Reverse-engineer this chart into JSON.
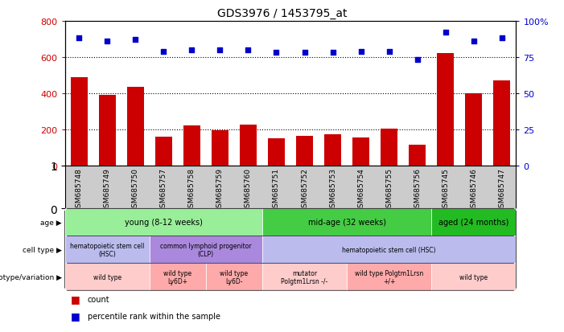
{
  "title": "GDS3976 / 1453795_at",
  "samples": [
    "GSM685748",
    "GSM685749",
    "GSM685750",
    "GSM685757",
    "GSM685758",
    "GSM685759",
    "GSM685760",
    "GSM685751",
    "GSM685752",
    "GSM685753",
    "GSM685754",
    "GSM685755",
    "GSM685756",
    "GSM685745",
    "GSM685746",
    "GSM685747"
  ],
  "counts": [
    490,
    390,
    435,
    160,
    220,
    195,
    225,
    150,
    165,
    170,
    155,
    205,
    115,
    620,
    400,
    470
  ],
  "percentiles": [
    88,
    86,
    87,
    79,
    80,
    80,
    80,
    78,
    78,
    78,
    79,
    79,
    73,
    92,
    86,
    88
  ],
  "bar_color": "#cc0000",
  "dot_color": "#0000cc",
  "ylim_left": [
    0,
    800
  ],
  "ylim_right": [
    0,
    100
  ],
  "yticks_left": [
    0,
    200,
    400,
    600,
    800
  ],
  "yticks_right": [
    0,
    25,
    50,
    75,
    100
  ],
  "grid_values": [
    200,
    400,
    600
  ],
  "age_groups": [
    {
      "label": "young (8-12 weeks)",
      "start": 0,
      "end": 6,
      "color": "#99ee99"
    },
    {
      "label": "mid-age (32 weeks)",
      "start": 7,
      "end": 12,
      "color": "#44cc44"
    },
    {
      "label": "aged (24 months)",
      "start": 13,
      "end": 15,
      "color": "#22bb22"
    }
  ],
  "cell_type_groups": [
    {
      "label": "hematopoietic stem cell\n(HSC)",
      "start": 0,
      "end": 2,
      "color": "#bbbbee"
    },
    {
      "label": "common lymphoid progenitor\n(CLP)",
      "start": 3,
      "end": 6,
      "color": "#aa88dd"
    },
    {
      "label": "hematopoietic stem cell (HSC)",
      "start": 7,
      "end": 15,
      "color": "#bbbbee"
    }
  ],
  "genotype_groups": [
    {
      "label": "wild type",
      "start": 0,
      "end": 2,
      "color": "#ffcccc"
    },
    {
      "label": "wild type\nLy6D+",
      "start": 3,
      "end": 4,
      "color": "#ffaaaa"
    },
    {
      "label": "wild type\nLy6D-",
      "start": 5,
      "end": 6,
      "color": "#ffaaaa"
    },
    {
      "label": "mutator\nPolgtm1Lrsn -/-",
      "start": 7,
      "end": 9,
      "color": "#ffcccc"
    },
    {
      "label": "wild type Polgtm1Lrsn\n+/+",
      "start": 10,
      "end": 12,
      "color": "#ffaaaa"
    },
    {
      "label": "wild type",
      "start": 13,
      "end": 15,
      "color": "#ffcccc"
    }
  ],
  "row_labels": [
    "age",
    "cell type",
    "genotype/variation"
  ],
  "legend_items": [
    {
      "color": "#cc0000",
      "label": "count"
    },
    {
      "color": "#0000cc",
      "label": "percentile rank within the sample"
    }
  ],
  "bar_width": 0.6,
  "xtick_bg_color": "#cccccc",
  "border_color": "#000000"
}
